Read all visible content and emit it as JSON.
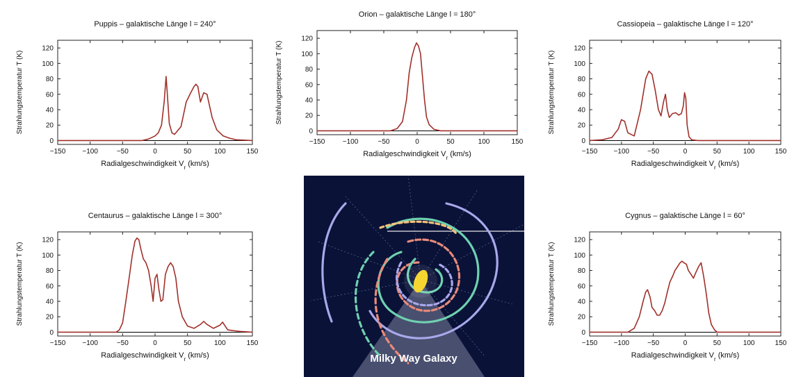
{
  "chart_data": [
    {
      "id": "puppis",
      "type": "line",
      "title": "Puppis – galaktische Länge l = 240°",
      "xlabel": "Radialgeschwindigkeit V",
      "xlabel_sub": "r",
      "xlabel_unit": " (km/s)",
      "ylabel": "Strahlungstemperatur T (K)",
      "xlim": [
        -150,
        150
      ],
      "ylim": [
        -5,
        130
      ],
      "xticks": [
        -150,
        -100,
        -50,
        0,
        50,
        100,
        150
      ],
      "yticks": [
        0,
        20,
        40,
        60,
        80,
        100,
        120
      ],
      "series": [
        {
          "color": "#a0302a",
          "x": [
            -150,
            -20,
            -10,
            0,
            5,
            10,
            14,
            17,
            19,
            22,
            26,
            30,
            40,
            48,
            55,
            60,
            63,
            66,
            70,
            75,
            80,
            84,
            88,
            95,
            105,
            115,
            125,
            150
          ],
          "y": [
            0,
            0,
            2,
            6,
            10,
            20,
            50,
            83,
            60,
            22,
            10,
            8,
            18,
            50,
            62,
            70,
            73,
            70,
            50,
            62,
            60,
            45,
            30,
            14,
            6,
            3,
            1,
            0
          ]
        }
      ]
    },
    {
      "id": "orion",
      "type": "line",
      "title": "Orion – galaktische Länge l = 180°",
      "xlabel": "Radialgeschwindigkeit V",
      "xlabel_sub": "r",
      "xlabel_unit": " (km/s)",
      "ylabel": "Strahlungstemperatur T (K)",
      "xlim": [
        -150,
        150
      ],
      "ylim": [
        -5,
        130
      ],
      "xticks": [
        -150,
        -100,
        -50,
        0,
        50,
        100,
        150
      ],
      "yticks": [
        0,
        20,
        40,
        60,
        80,
        100,
        120
      ],
      "series": [
        {
          "color": "#a0302a",
          "x": [
            -150,
            -40,
            -30,
            -22,
            -16,
            -12,
            -8,
            -4,
            -1,
            2,
            5,
            8,
            11,
            14,
            18,
            25,
            35,
            150
          ],
          "y": [
            0,
            0,
            3,
            12,
            40,
            75,
            95,
            108,
            114,
            110,
            100,
            70,
            40,
            18,
            8,
            2,
            0,
            0
          ]
        }
      ]
    },
    {
      "id": "cassiopeia",
      "type": "line",
      "title": "Cassiopeia – galaktische Länge l = 120°",
      "xlabel": "Radialgeschwindigkeit V",
      "xlabel_sub": "r",
      "xlabel_unit": " (km/s)",
      "ylabel": "Strahlungstemperatur T (K)",
      "xlim": [
        -150,
        150
      ],
      "ylim": [
        -5,
        130
      ],
      "xticks": [
        -150,
        -100,
        -50,
        0,
        50,
        100,
        150
      ],
      "yticks": [
        0,
        20,
        40,
        60,
        80,
        100,
        120
      ],
      "series": [
        {
          "color": "#a0302a",
          "x": [
            -150,
            -130,
            -115,
            -105,
            -100,
            -95,
            -90,
            -80,
            -70,
            -62,
            -57,
            -52,
            -47,
            -42,
            -38,
            -34,
            -31,
            -28,
            -25,
            -20,
            -15,
            -10,
            -6,
            -3,
            -1,
            1,
            3,
            6,
            10,
            20,
            150
          ],
          "y": [
            0,
            1,
            4,
            15,
            27,
            25,
            10,
            6,
            40,
            80,
            90,
            86,
            65,
            40,
            32,
            50,
            60,
            40,
            30,
            35,
            36,
            33,
            35,
            45,
            62,
            55,
            20,
            5,
            1,
            0,
            0
          ]
        }
      ]
    },
    {
      "id": "centaurus",
      "type": "line",
      "title": "Centaurus – galaktische Länge l = 300°",
      "xlabel": "Radialgeschwindigkeit V",
      "xlabel_sub": "r",
      "xlabel_unit": " (km/s)",
      "ylabel": "Strahlungstemperatur T (K)",
      "xlim": [
        -150,
        150
      ],
      "ylim": [
        -5,
        130
      ],
      "xticks": [
        -150,
        -100,
        -50,
        0,
        50,
        100,
        150
      ],
      "yticks": [
        0,
        20,
        40,
        60,
        80,
        100,
        120
      ],
      "series": [
        {
          "color": "#a0302a",
          "x": [
            -150,
            -60,
            -55,
            -50,
            -45,
            -40,
            -35,
            -31,
            -28,
            -25,
            -22,
            -18,
            -14,
            -10,
            -6,
            -3,
            0,
            3,
            6,
            9,
            12,
            16,
            20,
            24,
            28,
            32,
            36,
            42,
            50,
            60,
            70,
            75,
            80,
            90,
            100,
            104,
            108,
            112,
            120,
            130,
            150
          ],
          "y": [
            0,
            0,
            3,
            12,
            40,
            70,
            100,
            118,
            122,
            120,
            108,
            95,
            90,
            80,
            60,
            40,
            70,
            75,
            55,
            40,
            42,
            75,
            85,
            90,
            85,
            70,
            40,
            20,
            8,
            5,
            10,
            14,
            10,
            5,
            9,
            13,
            8,
            3,
            2,
            1,
            0
          ]
        }
      ]
    },
    {
      "id": "cygnus",
      "type": "line",
      "title": "Cygnus – galaktische Länge l = 60°",
      "xlabel": "Radialgeschwindigkeit V",
      "xlabel_sub": "r",
      "xlabel_unit": " (km/s)",
      "ylabel": "Strahlungstemperatur T (K)",
      "xlim": [
        -150,
        150
      ],
      "ylim": [
        -5,
        130
      ],
      "xticks": [
        -150,
        -100,
        -50,
        0,
        50,
        100,
        150
      ],
      "yticks": [
        0,
        20,
        40,
        60,
        80,
        100,
        120
      ],
      "series": [
        {
          "color": "#a0302a",
          "x": [
            -150,
            -90,
            -80,
            -72,
            -66,
            -62,
            -59,
            -55,
            -52,
            -48,
            -44,
            -40,
            -36,
            -32,
            -28,
            -24,
            -20,
            -16,
            -12,
            -8,
            -5,
            -2,
            2,
            5,
            9,
            13,
            17,
            21,
            25,
            29,
            33,
            37,
            41,
            46,
            50,
            150
          ],
          "y": [
            0,
            0,
            5,
            20,
            40,
            52,
            55,
            45,
            32,
            28,
            22,
            22,
            28,
            38,
            52,
            65,
            72,
            80,
            85,
            90,
            92,
            90,
            88,
            80,
            75,
            70,
            78,
            85,
            90,
            72,
            50,
            25,
            10,
            3,
            0,
            0
          ]
        }
      ]
    }
  ],
  "galaxy": {
    "title": "Milky Way Galaxy",
    "subtitle": "",
    "bg_color": "#0a1238",
    "arm_colors": [
      "#e98a7a",
      "#6fd1b0",
      "#a9a8ea",
      "#f5c27a",
      "#ffffff"
    ],
    "core_color": "#f6d320"
  }
}
